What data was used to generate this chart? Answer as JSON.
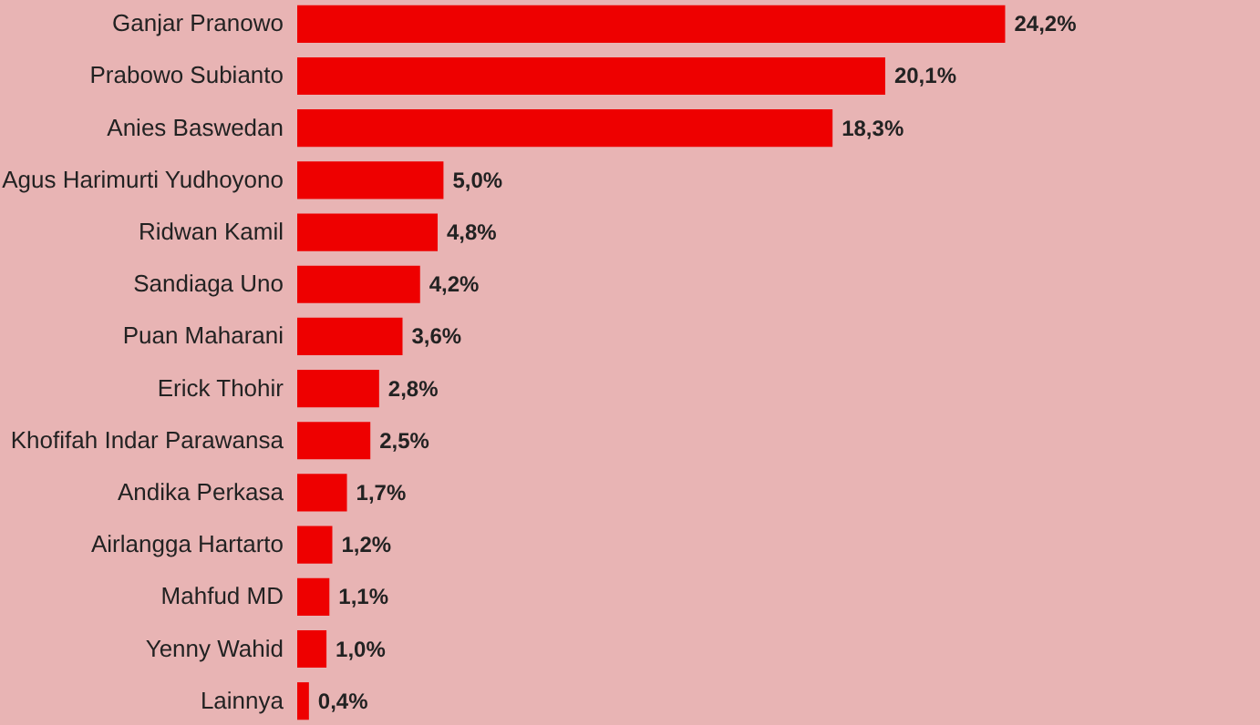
{
  "chart_data": {
    "type": "bar",
    "orientation": "horizontal",
    "color": "#ee0000",
    "categories": [
      "Ganjar Pranowo",
      "Prabowo Subianto",
      "Anies Baswedan",
      "Agus Harimurti Yudhoyono",
      "Ridwan Kamil",
      "Sandiaga Uno",
      "Puan Maharani",
      "Erick Thohir",
      "Khofifah Indar Parawansa",
      "Andika Perkasa",
      "Airlangga Hartarto",
      "Mahfud MD",
      "Yenny Wahid",
      "Lainnya"
    ],
    "values": [
      24.2,
      20.1,
      18.3,
      5.0,
      4.8,
      4.2,
      3.6,
      2.8,
      2.5,
      1.7,
      1.2,
      1.1,
      1.0,
      0.4
    ],
    "value_labels": [
      "24,2%",
      "20,1%",
      "18,3%",
      "5,0%",
      "4,8%",
      "4,2%",
      "3,6%",
      "2,8%",
      "2,5%",
      "1,7%",
      "1,2%",
      "1,1%",
      "1,0%",
      "0,4%"
    ]
  }
}
